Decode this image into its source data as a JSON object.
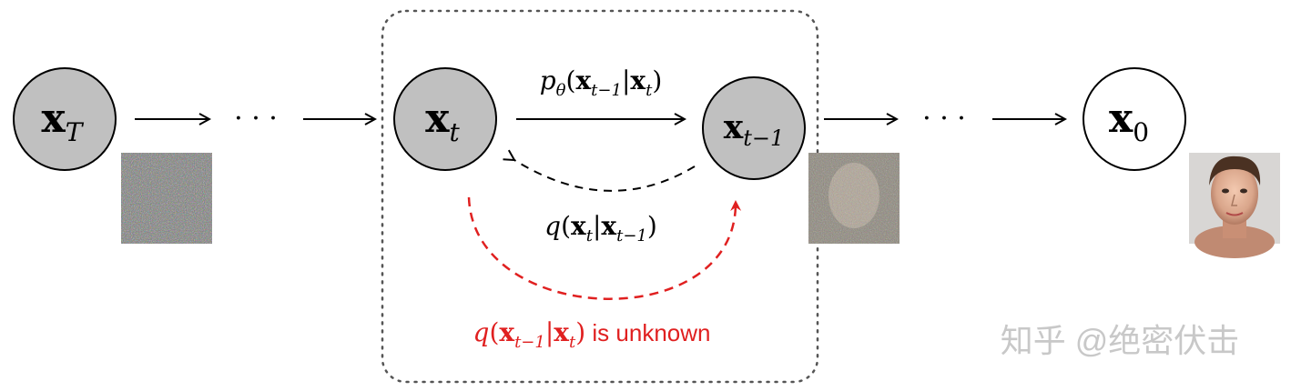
{
  "nodes": {
    "xT": {
      "base": "x",
      "sub": "T",
      "fill": "#c0c0c0"
    },
    "xt": {
      "base": "x",
      "sub": "t",
      "fill": "#c0c0c0"
    },
    "xt1": {
      "base": "x",
      "sub": "t−1",
      "fill": "#c0c0c0"
    },
    "x0": {
      "base": "x",
      "sub": "0",
      "fill": "#ffffff"
    }
  },
  "ellipsis": "· · ·",
  "labels": {
    "reverse": {
      "p": "p",
      "theta": "θ",
      "open": "(",
      "x1": "x",
      "s1": "t−1",
      "bar": "|",
      "x2": "x",
      "s2": "t",
      "close": ")"
    },
    "forward": {
      "q": "q",
      "open": "(",
      "x1": "x",
      "s1": "t",
      "bar": "|",
      "x2": "x",
      "s2": "t−1",
      "close": ")"
    },
    "unknown": {
      "q": "q",
      "open": "(",
      "x1": "x",
      "s1": "t−1",
      "bar": "|",
      "x2": "x",
      "s2": "t",
      "close": ")",
      "suffix": " is unknown"
    }
  },
  "watermark": "知乎 @绝密伏击",
  "colors": {
    "node_gray": "#c0c0c0",
    "red": "#e02020",
    "black": "#000000",
    "watermark": "#c8c8c8"
  },
  "images": {
    "noise_full": "noise-image",
    "noise_partial": "partially-denoised-face-image",
    "clean": "face-photo"
  }
}
